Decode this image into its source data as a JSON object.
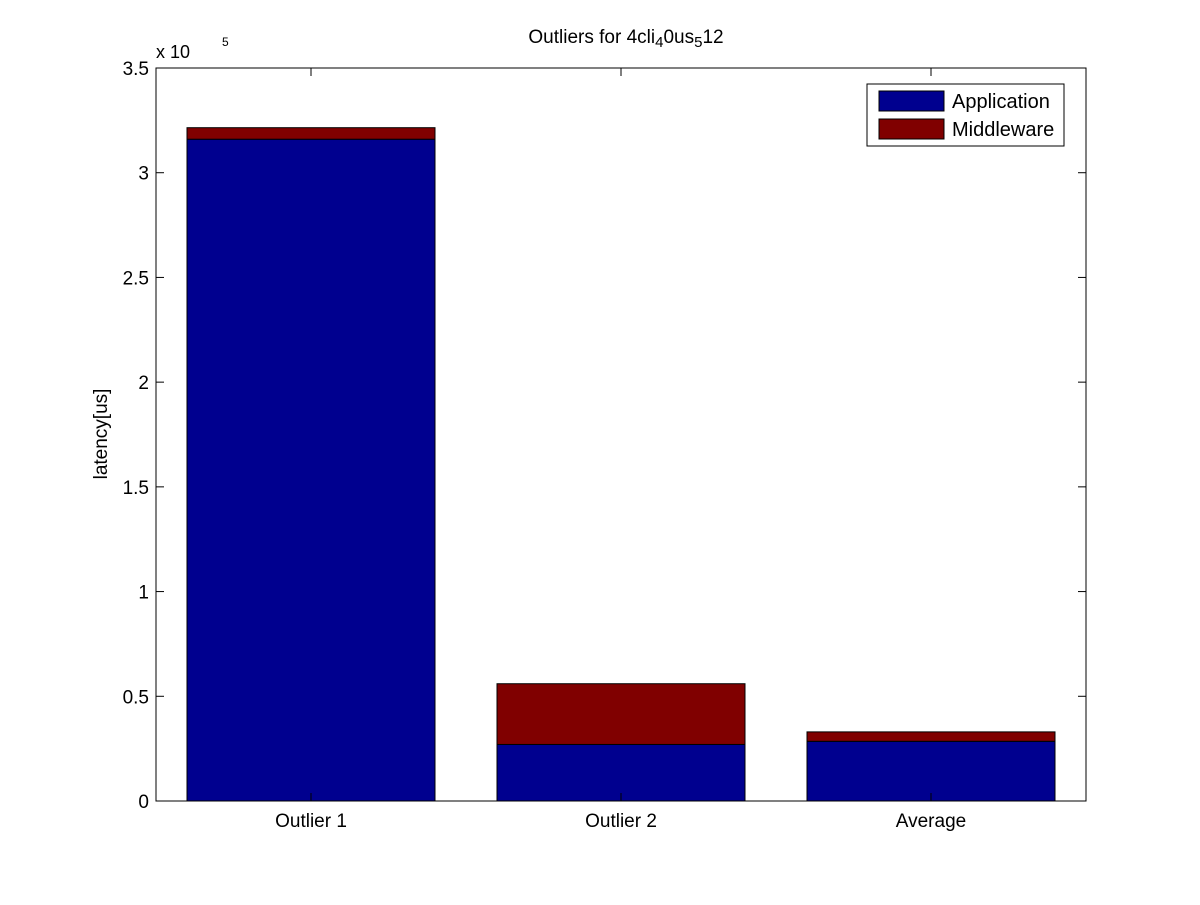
{
  "chart_data": {
    "type": "bar",
    "stacked": true,
    "title": "Outliers for 4cli",
    "title_segments": [
      {
        "text": "Outliers for 4cli",
        "sub": false
      },
      {
        "text": "4",
        "sub": true
      },
      {
        "text": "0us",
        "sub": false
      },
      {
        "text": "5",
        "sub": true
      },
      {
        "text": "12",
        "sub": false
      }
    ],
    "xlabel": "",
    "ylabel": "latency[us]",
    "y_multiplier_label": "x 10",
    "y_multiplier_exponent": "5",
    "categories": [
      "Outlier 1",
      "Outlier 2",
      "Average"
    ],
    "series": [
      {
        "name": "Application",
        "color": "#00008f",
        "values": [
          316000,
          27000,
          28500
        ]
      },
      {
        "name": "Middleware",
        "color": "#800000",
        "values": [
          5500,
          29000,
          4500
        ]
      }
    ],
    "ylim": [
      0,
      350000
    ],
    "y_ticks": [
      0,
      50000,
      100000,
      150000,
      200000,
      250000,
      300000,
      350000
    ],
    "y_tick_labels": [
      "0",
      "0.5",
      "1",
      "1.5",
      "2",
      "2.5",
      "3",
      "3.5"
    ],
    "grid": false,
    "legend_position": "top-right"
  }
}
